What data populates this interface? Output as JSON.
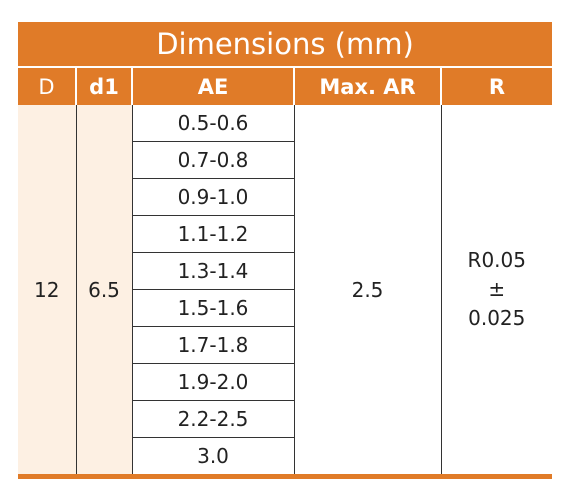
{
  "table": {
    "title": "Dimensions (mm)",
    "headers": [
      "D",
      "d1",
      "AE",
      "Max. AR",
      "R"
    ],
    "D": "12",
    "d1": "6.5",
    "AE": [
      "0.5-0.6",
      "0.7-0.8",
      "0.9-1.0",
      "1.1-1.2",
      "1.3-1.4",
      "1.5-1.6",
      "1.7-1.8",
      "1.9-2.0",
      "2.2-2.5",
      "3.0"
    ],
    "max_ar": "2.5",
    "R": [
      "R0.05",
      "±",
      "0.025"
    ]
  }
}
